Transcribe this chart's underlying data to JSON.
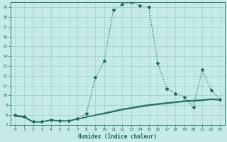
{
  "xlabel": "Humidex (Indice chaleur)",
  "ylabel": "",
  "background_color": "#c5eae7",
  "grid_color": "#9ecfcb",
  "line_color": "#1a6b60",
  "xlim": [
    -0.5,
    23.5
  ],
  "ylim": [
    7,
    19.5
  ],
  "xticks": [
    0,
    1,
    2,
    3,
    4,
    5,
    6,
    7,
    8,
    9,
    10,
    11,
    12,
    13,
    14,
    15,
    16,
    17,
    18,
    19,
    20,
    21,
    22,
    23
  ],
  "yticks": [
    7,
    8,
    9,
    10,
    11,
    12,
    13,
    14,
    15,
    16,
    17,
    18,
    19
  ],
  "series": [
    {
      "x": [
        0,
        1,
        2,
        3,
        4,
        5,
        6,
        7,
        8,
        9,
        10,
        11,
        12,
        13,
        14,
        15,
        16,
        17,
        18,
        19,
        20,
        21,
        22,
        23
      ],
      "y": [
        8.0,
        7.85,
        7.3,
        7.3,
        7.5,
        7.4,
        7.4,
        7.6,
        8.15,
        11.8,
        13.5,
        18.7,
        19.3,
        19.5,
        19.2,
        19.0,
        13.3,
        10.7,
        10.2,
        9.8,
        8.8,
        12.6,
        10.5,
        9.6
      ],
      "style": "--",
      "marker": "*",
      "markersize": 3,
      "linewidth": 0.9,
      "dotted": true
    },
    {
      "x": [
        0,
        1,
        2,
        3,
        4,
        5,
        6,
        7,
        8,
        9,
        10,
        11,
        12,
        13,
        14,
        15,
        16,
        17,
        18,
        19,
        20,
        21,
        22,
        23
      ],
      "y": [
        7.95,
        7.85,
        7.3,
        7.3,
        7.5,
        7.4,
        7.4,
        7.6,
        7.8,
        8.0,
        8.2,
        8.4,
        8.6,
        8.75,
        8.9,
        9.05,
        9.15,
        9.25,
        9.35,
        9.45,
        9.5,
        9.55,
        9.65,
        9.6
      ],
      "style": "-",
      "marker": null,
      "markersize": 0,
      "linewidth": 0.7,
      "dotted": false
    },
    {
      "x": [
        0,
        1,
        2,
        3,
        4,
        5,
        6,
        7,
        8,
        9,
        10,
        11,
        12,
        13,
        14,
        15,
        16,
        17,
        18,
        19,
        20,
        21,
        22,
        23
      ],
      "y": [
        7.9,
        7.8,
        7.28,
        7.28,
        7.48,
        7.38,
        7.38,
        7.58,
        7.78,
        7.98,
        8.15,
        8.35,
        8.55,
        8.7,
        8.85,
        9.0,
        9.1,
        9.2,
        9.3,
        9.4,
        9.45,
        9.5,
        9.6,
        9.55
      ],
      "style": "-",
      "marker": null,
      "markersize": 0,
      "linewidth": 0.7,
      "dotted": false
    },
    {
      "x": [
        0,
        1,
        2,
        3,
        4,
        5,
        6,
        7,
        8,
        9,
        10,
        11,
        12,
        13,
        14,
        15,
        16,
        17,
        18,
        19,
        20,
        21,
        22,
        23
      ],
      "y": [
        7.85,
        7.75,
        7.26,
        7.26,
        7.46,
        7.36,
        7.36,
        7.56,
        7.76,
        7.96,
        8.1,
        8.3,
        8.5,
        8.65,
        8.8,
        8.95,
        9.05,
        9.15,
        9.25,
        9.35,
        9.4,
        9.45,
        9.55,
        9.5
      ],
      "style": "-",
      "marker": null,
      "markersize": 0,
      "linewidth": 0.7,
      "dotted": false
    }
  ]
}
